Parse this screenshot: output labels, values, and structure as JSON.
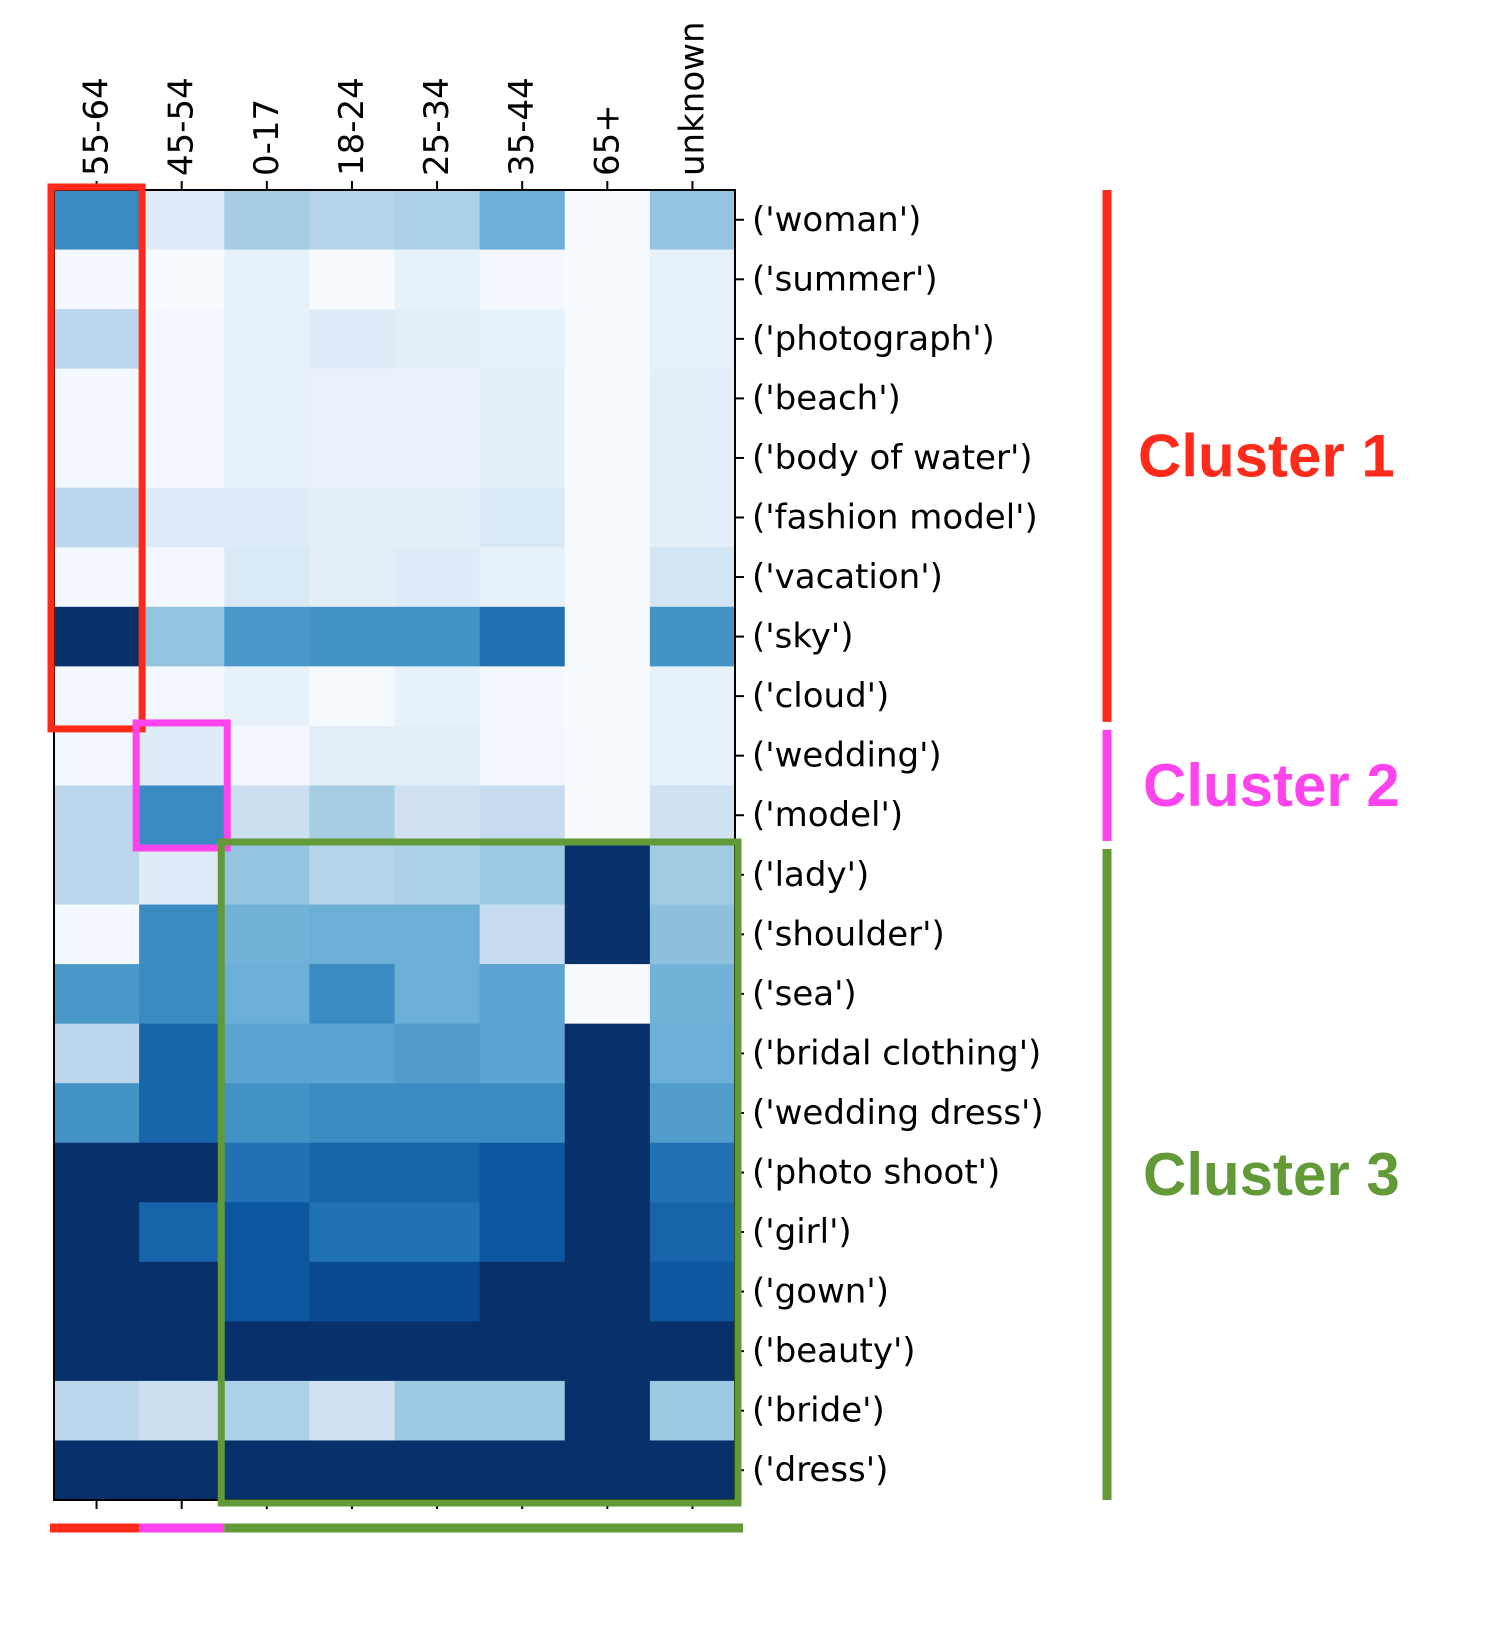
{
  "chart_data": {
    "type": "heatmap",
    "colormap": "Blues",
    "columns": [
      "55-64",
      "45-54",
      "0-17",
      "18-24",
      "25-34",
      "35-44",
      "65+",
      "unknown"
    ],
    "rows": [
      "('woman')",
      "('summer')",
      "('photograph')",
      "('beach')",
      "('body of water')",
      "('fashion model')",
      "('vacation')",
      "('sky')",
      "('cloud')",
      "('wedding')",
      "('model')",
      "('lady')",
      "('shoulder')",
      "('sea')",
      "('bridal clothing')",
      "('wedding dress')",
      "('photo shoot')",
      "('girl')",
      "('gown')",
      "('beauty')",
      "('bride')",
      "('dress')"
    ],
    "values": [
      [
        0.65,
        0.12,
        0.35,
        0.3,
        0.33,
        0.5,
        0.0,
        0.4
      ],
      [
        0.02,
        0.0,
        0.08,
        0.0,
        0.08,
        0.02,
        0.0,
        0.08
      ],
      [
        0.28,
        0.02,
        0.08,
        0.12,
        0.1,
        0.08,
        0.0,
        0.08
      ],
      [
        0.02,
        0.02,
        0.08,
        0.07,
        0.07,
        0.09,
        0.0,
        0.1
      ],
      [
        0.02,
        0.02,
        0.08,
        0.07,
        0.07,
        0.09,
        0.0,
        0.1
      ],
      [
        0.28,
        0.12,
        0.12,
        0.1,
        0.1,
        0.15,
        0.0,
        0.1
      ],
      [
        0.02,
        0.02,
        0.15,
        0.1,
        0.12,
        0.08,
        0.0,
        0.18
      ],
      [
        1.0,
        0.4,
        0.6,
        0.62,
        0.62,
        0.75,
        0.0,
        0.62
      ],
      [
        0.02,
        0.02,
        0.08,
        0.01,
        0.08,
        0.02,
        0.0,
        0.08
      ],
      [
        0.02,
        0.12,
        0.02,
        0.1,
        0.1,
        0.03,
        0.0,
        0.08
      ],
      [
        0.28,
        0.65,
        0.22,
        0.35,
        0.2,
        0.25,
        0.0,
        0.2
      ],
      [
        0.28,
        0.12,
        0.4,
        0.3,
        0.33,
        0.38,
        1.0,
        0.37
      ],
      [
        0.02,
        0.65,
        0.48,
        0.5,
        0.5,
        0.25,
        1.0,
        0.42
      ],
      [
        0.6,
        0.65,
        0.5,
        0.65,
        0.5,
        0.55,
        0.0,
        0.48
      ],
      [
        0.28,
        0.8,
        0.55,
        0.55,
        0.58,
        0.55,
        1.0,
        0.5
      ],
      [
        0.62,
        0.8,
        0.62,
        0.65,
        0.65,
        0.65,
        1.0,
        0.58
      ],
      [
        1.0,
        1.0,
        0.75,
        0.8,
        0.8,
        0.85,
        1.0,
        0.75
      ],
      [
        1.0,
        0.8,
        0.85,
        0.75,
        0.75,
        0.85,
        1.0,
        0.8
      ],
      [
        1.0,
        1.0,
        0.85,
        0.9,
        0.9,
        1.0,
        1.0,
        0.85
      ],
      [
        1.0,
        1.0,
        1.0,
        1.0,
        1.0,
        1.0,
        1.0,
        1.0
      ],
      [
        0.28,
        0.22,
        0.33,
        0.2,
        0.38,
        0.38,
        1.0,
        0.38
      ],
      [
        1.0,
        1.0,
        1.0,
        1.0,
        1.0,
        1.0,
        1.0,
        1.0
      ]
    ],
    "clusters": [
      {
        "name": "Cluster 1",
        "color": "#ff2a1a",
        "rows": [
          0,
          8
        ],
        "cols": [
          0,
          0
        ]
      },
      {
        "name": "Cluster 2",
        "color": "#ff44ee",
        "rows": [
          9,
          10
        ],
        "cols": [
          1,
          1
        ]
      },
      {
        "name": "Cluster 3",
        "color": "#629a38",
        "rows": [
          11,
          21
        ],
        "cols": [
          2,
          7
        ]
      }
    ]
  }
}
